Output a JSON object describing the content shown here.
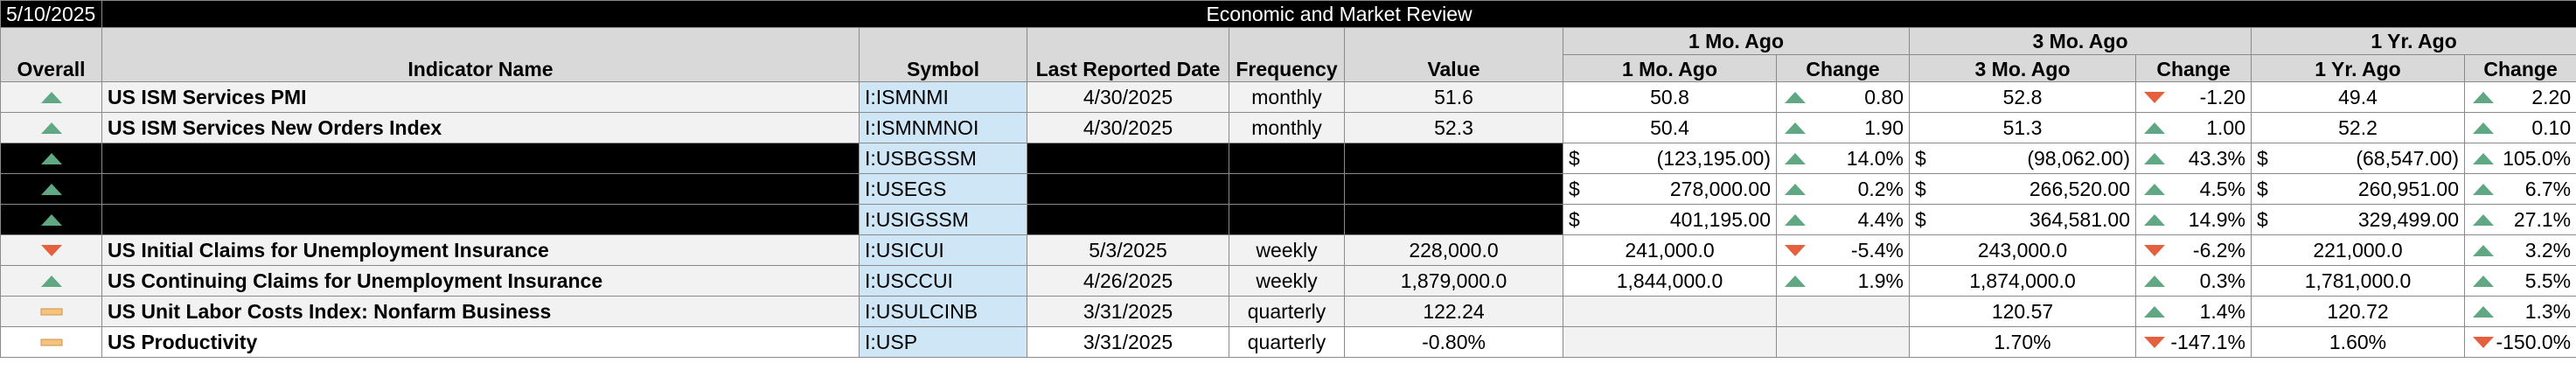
{
  "header": {
    "date": "5/10/2025",
    "title": "Economic and Market Review"
  },
  "columns": [
    "Overall",
    "Indicator Name",
    "Symbol",
    "Last Reported Date",
    "Frequency",
    "Value"
  ],
  "groups": [
    {
      "title": "1 Mo. Ago",
      "columns": [
        "1 Mo. Ago",
        "Change"
      ]
    },
    {
      "title": "3 Mo. Ago",
      "columns": [
        "3 Mo. Ago",
        "Change"
      ]
    },
    {
      "title": "1 Yr. Ago",
      "columns": [
        "1 Yr. Ago",
        "Change"
      ]
    }
  ],
  "rows": [
    {
      "overall": "up",
      "name": "US ISM Services PMI",
      "symbol": "I:ISMNMI",
      "date": "4/30/2025",
      "frequency": "monthly",
      "value": "51.6",
      "periods": [
        {
          "value": "50.8",
          "trend": "up",
          "change": "0.80"
        },
        {
          "value": "52.8",
          "trend": "down",
          "change": "-1.20"
        },
        {
          "value": "49.4",
          "trend": "up",
          "change": "2.20"
        }
      ]
    },
    {
      "overall": "up",
      "name": "US ISM Services New Orders Index",
      "symbol": "I:ISMNMNOI",
      "date": "4/30/2025",
      "frequency": "monthly",
      "value": "52.3",
      "periods": [
        {
          "value": "50.4",
          "trend": "up",
          "change": "1.90"
        },
        {
          "value": "51.3",
          "trend": "up",
          "change": "1.00"
        },
        {
          "value": "52.2",
          "trend": "up",
          "change": "0.10"
        }
      ]
    },
    {
      "overall": "up",
      "redacted": true,
      "symbol": "I:USBGSSM",
      "periods": [
        {
          "currency": "$",
          "value": "(123,195.00)",
          "trend": "up",
          "change": "14.0%"
        },
        {
          "currency": "$",
          "value": "(98,062.00)",
          "trend": "up",
          "change": "43.3%"
        },
        {
          "currency": "$",
          "value": "(68,547.00)",
          "trend": "up",
          "change": "105.0%"
        }
      ]
    },
    {
      "overall": "up",
      "redacted": true,
      "symbol": "I:USEGS",
      "periods": [
        {
          "currency": "$",
          "value": "278,000.00",
          "trend": "up",
          "change": "0.2%"
        },
        {
          "currency": "$",
          "value": "266,520.00",
          "trend": "up",
          "change": "4.5%"
        },
        {
          "currency": "$",
          "value": "260,951.00",
          "trend": "up",
          "change": "6.7%"
        }
      ]
    },
    {
      "overall": "up",
      "redacted": true,
      "symbol": "I:USIGSSM",
      "periods": [
        {
          "currency": "$",
          "value": "401,195.00",
          "trend": "up",
          "change": "4.4%"
        },
        {
          "currency": "$",
          "value": "364,581.00",
          "trend": "up",
          "change": "14.9%"
        },
        {
          "currency": "$",
          "value": "329,499.00",
          "trend": "up",
          "change": "27.1%"
        }
      ]
    },
    {
      "overall": "down",
      "name": "US Initial Claims for Unemployment Insurance",
      "symbol": "I:USICUI",
      "date": "5/3/2025",
      "frequency": "weekly",
      "value": "228,000.0",
      "periods": [
        {
          "value": "241,000.0",
          "trend": "down",
          "change": "-5.4%"
        },
        {
          "value": "243,000.0",
          "trend": "down",
          "change": "-6.2%"
        },
        {
          "value": "221,000.0",
          "trend": "up",
          "change": "3.2%"
        }
      ]
    },
    {
      "overall": "up",
      "name": "US Continuing Claims for Unemployment Insurance",
      "symbol": "I:USCCUI",
      "date": "4/26/2025",
      "frequency": "weekly",
      "value": "1,879,000.0",
      "periods": [
        {
          "value": "1,844,000.0",
          "trend": "up",
          "change": "1.9%"
        },
        {
          "value": "1,874,000.0",
          "trend": "up",
          "change": "0.3%"
        },
        {
          "value": "1,781,000.0",
          "trend": "up",
          "change": "5.5%"
        }
      ]
    },
    {
      "overall": "flat",
      "name": "US Unit Labor Costs Index: Nonfarm Business",
      "symbol": "I:USULCINB",
      "date": "3/31/2025",
      "frequency": "quarterly",
      "value": "122.24",
      "periods": [
        null,
        {
          "value": "120.57",
          "trend": "up",
          "change": "1.4%"
        },
        {
          "value": "120.72",
          "trend": "up",
          "change": "1.3%"
        }
      ]
    },
    {
      "overall": "flat",
      "name": "US Productivity",
      "symbol": "I:USP",
      "date": "3/31/2025",
      "frequency": "quarterly",
      "value": "-0.80%",
      "periods": [
        null,
        {
          "value": "1.70%",
          "trend": "down",
          "change": "-147.1%"
        },
        {
          "value": "1.60%",
          "trend": "down",
          "change": "-150.0%"
        }
      ]
    }
  ]
}
